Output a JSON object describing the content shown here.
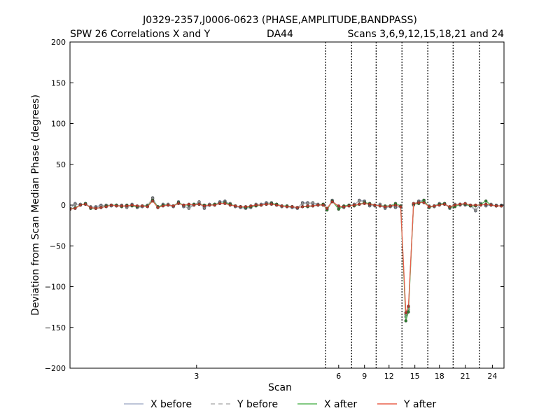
{
  "chart_data": {
    "type": "line",
    "title": "J0329-2357,J0006-0623 (PHASE,AMPLITUDE,BANDPASS)",
    "subtitle_left": "SPW 26 Correlations X and Y",
    "subtitle_center": "DA44",
    "subtitle_right": "Scans 3,6,9,12,15,18,21 and 24",
    "xlabel": "Scan",
    "ylabel": "Deviation from Scan Median Phase (degrees)",
    "ylim": [
      -200,
      200
    ],
    "yticks": [
      200,
      150,
      100,
      50,
      0,
      -50,
      -100,
      -150,
      -200
    ],
    "xlim": [
      0,
      168
    ],
    "scan_ticks": [
      {
        "label": "3",
        "x": 49
      },
      {
        "label": "6",
        "x": 104
      },
      {
        "label": "9",
        "x": 114
      },
      {
        "label": "12",
        "x": 123.5
      },
      {
        "label": "15",
        "x": 133.5
      },
      {
        "label": "18",
        "x": 143
      },
      {
        "label": "21",
        "x": 153
      },
      {
        "label": "24",
        "x": 163.5
      }
    ],
    "scan_boundaries": [
      99,
      109,
      118.5,
      128.5,
      138.5,
      148.3,
      158.5
    ],
    "legend": {
      "placement": "bottom",
      "entries": [
        {
          "label": "X before",
          "style": "solid",
          "color": "#a8b4cc"
        },
        {
          "label": "Y before",
          "style": "dashed",
          "color": "#b4b4b4"
        },
        {
          "label": "X after",
          "style": "solid",
          "color": "#5cb85c"
        },
        {
          "label": "Y after",
          "style": "solid",
          "color": "#e8604c"
        }
      ]
    },
    "series": [
      {
        "name": "X before",
        "color": "#a8b4cc",
        "x": [
          0,
          2,
          4,
          6,
          8,
          10,
          12,
          14,
          16,
          18,
          20,
          22,
          24,
          26,
          28,
          30,
          32,
          34,
          36,
          38,
          40,
          42,
          44,
          46,
          48,
          50,
          52,
          54,
          56,
          58,
          60,
          62,
          64,
          66,
          68,
          70,
          72,
          74,
          76,
          78,
          80,
          82,
          84,
          86,
          88,
          90,
          92,
          94,
          96,
          98,
          99.5,
          101.5,
          104,
          106,
          108,
          110,
          112,
          114,
          116,
          118,
          120,
          122,
          124,
          126,
          128,
          130,
          131,
          133,
          135,
          137,
          139,
          141,
          143,
          145,
          147,
          149,
          151,
          153,
          155,
          157,
          159,
          161,
          163,
          165,
          167
        ],
        "y": [
          -5,
          2,
          0,
          2,
          -3,
          -2,
          0,
          -1,
          -1,
          0,
          -1,
          -2,
          1,
          -3,
          -2,
          -1,
          9,
          -3,
          1,
          0,
          -2,
          4,
          -2,
          -3,
          1,
          3,
          -4,
          1,
          0,
          4,
          5,
          1,
          -2,
          -3,
          -4,
          -3,
          0,
          1,
          3,
          2,
          1,
          -1,
          -2,
          -3,
          -4,
          3,
          3,
          2,
          0,
          1,
          -5,
          6,
          -3,
          -2,
          -1,
          0,
          6,
          5,
          -1,
          0,
          0,
          -4,
          -1,
          -3,
          -2,
          -137,
          -128,
          1,
          5,
          6,
          -2,
          -1,
          2,
          2,
          -4,
          0,
          1,
          0,
          -1,
          -7,
          2,
          -1,
          0,
          -1,
          0
        ]
      },
      {
        "name": "Y before",
        "color": "#b4b4b4",
        "x": [
          0,
          2,
          4,
          6,
          8,
          10,
          12,
          14,
          16,
          18,
          20,
          22,
          24,
          26,
          28,
          30,
          32,
          34,
          36,
          38,
          40,
          42,
          44,
          46,
          48,
          50,
          52,
          54,
          56,
          58,
          60,
          62,
          64,
          66,
          68,
          70,
          72,
          74,
          76,
          78,
          80,
          82,
          84,
          86,
          88,
          90,
          92,
          94,
          96,
          98,
          99.5,
          101.5,
          104,
          106,
          108,
          110,
          112,
          114,
          116,
          118,
          120,
          122,
          124,
          126,
          128,
          130,
          131,
          133,
          135,
          137,
          139,
          141,
          143,
          145,
          147,
          149,
          151,
          153,
          155,
          157,
          159,
          161,
          163,
          165,
          167
        ],
        "y": [
          -4,
          1,
          1,
          1,
          -2,
          -3,
          -1,
          0,
          0,
          -1,
          0,
          -3,
          0,
          -2,
          -1,
          0,
          8,
          -2,
          0,
          1,
          -1,
          3,
          -1,
          -4,
          0,
          4,
          -3,
          0,
          1,
          3,
          4,
          2,
          -1,
          -2,
          -3,
          -2,
          1,
          0,
          2,
          3,
          0,
          -2,
          -1,
          -2,
          -3,
          2,
          2,
          3,
          1,
          0,
          -4,
          5,
          -2,
          -3,
          0,
          1,
          5,
          4,
          0,
          -1,
          1,
          -3,
          -2,
          -2,
          -1,
          -134,
          -125,
          0,
          4,
          5,
          -1,
          -2,
          1,
          1,
          -3,
          1,
          0,
          1,
          0,
          -6,
          1,
          0,
          1,
          0,
          -1
        ]
      },
      {
        "name": "X after",
        "color": "#5cb85c",
        "x": [
          0,
          2,
          4,
          6,
          8,
          10,
          12,
          14,
          16,
          18,
          20,
          22,
          24,
          26,
          28,
          30,
          32,
          34,
          36,
          38,
          40,
          42,
          44,
          46,
          48,
          50,
          52,
          54,
          56,
          58,
          60,
          62,
          64,
          66,
          68,
          70,
          72,
          74,
          76,
          78,
          80,
          82,
          84,
          86,
          88,
          90,
          92,
          94,
          96,
          98,
          99.5,
          101.5,
          104,
          106,
          108,
          110,
          112,
          114,
          116,
          118,
          120,
          122,
          124,
          126,
          128,
          130,
          131,
          133,
          135,
          137,
          139,
          141,
          143,
          145,
          147,
          149,
          151,
          153,
          155,
          157,
          159,
          161,
          163,
          165,
          167
        ],
        "y": [
          -5,
          -3,
          0,
          2,
          -4,
          -4,
          -3,
          -1,
          0,
          0,
          -2,
          0,
          -1,
          -2,
          -1,
          -1,
          6,
          -2,
          0,
          0,
          -1,
          3,
          0,
          0,
          1,
          1,
          0,
          0,
          1,
          2,
          3,
          1,
          -1,
          -2,
          -3,
          -2,
          -1,
          0,
          1,
          2,
          1,
          -1,
          -1,
          -2,
          -3,
          -2,
          -2,
          -1,
          0,
          1,
          -6,
          5,
          -5,
          -1,
          0,
          -1,
          1,
          3,
          2,
          0,
          -1,
          -1,
          -1,
          2,
          -1,
          -142,
          -131,
          1,
          2,
          6,
          -3,
          -1,
          1,
          2,
          -3,
          -2,
          1,
          1,
          -1,
          -1,
          1,
          5,
          0,
          -1,
          -1
        ]
      },
      {
        "name": "Y after",
        "color": "#e8604c",
        "x": [
          0,
          2,
          4,
          6,
          8,
          10,
          12,
          14,
          16,
          18,
          20,
          22,
          24,
          26,
          28,
          30,
          32,
          34,
          36,
          38,
          40,
          42,
          44,
          46,
          48,
          50,
          52,
          54,
          56,
          58,
          60,
          62,
          64,
          66,
          68,
          70,
          72,
          74,
          76,
          78,
          80,
          82,
          84,
          86,
          88,
          90,
          92,
          94,
          96,
          98,
          99.5,
          101.5,
          104,
          106,
          108,
          110,
          112,
          114,
          116,
          118,
          120,
          122,
          124,
          126,
          128,
          130,
          131,
          133,
          135,
          137,
          139,
          141,
          143,
          145,
          147,
          149,
          151,
          153,
          155,
          157,
          159,
          161,
          163,
          165,
          167
        ],
        "y": [
          -5,
          -4,
          0,
          1,
          -3,
          -4,
          -3,
          -2,
          0,
          -1,
          -1,
          -1,
          0,
          -1,
          -1,
          -2,
          5,
          -3,
          -1,
          0,
          -1,
          2,
          0,
          1,
          0,
          1,
          -1,
          0,
          0,
          2,
          2,
          0,
          -1,
          -2,
          -2,
          -1,
          0,
          0,
          1,
          1,
          0,
          -1,
          -2,
          -2,
          -3,
          -2,
          -1,
          -1,
          0,
          0,
          -4,
          4,
          -1,
          -2,
          -1,
          0,
          1,
          2,
          1,
          0,
          -1,
          -2,
          -1,
          0,
          -2,
          -132,
          -124,
          2,
          3,
          3,
          -2,
          -1,
          0,
          1,
          -2,
          0,
          1,
          2,
          0,
          0,
          0,
          1,
          0,
          -1,
          -1
        ]
      }
    ]
  }
}
